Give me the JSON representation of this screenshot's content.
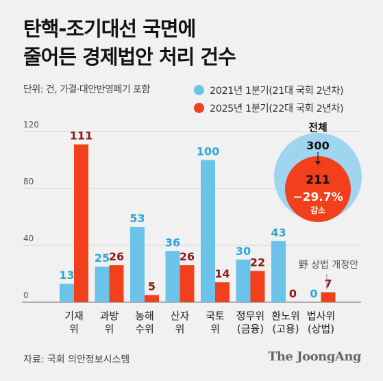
{
  "header": {
    "title_line1": "탄핵-조기대선 국면에",
    "title_line2": "줄어든 경제법안 처리 건수",
    "unit": "단위: 건, 가결·대안반영폐기 포함"
  },
  "legend": [
    {
      "label": "2021년 1분기(21대 국회 2년차)",
      "color": "#6cc3ea"
    },
    {
      "label": "2025년 1분기(22대 국회 2년차)",
      "color": "#f2401c"
    }
  ],
  "summary": {
    "label": "전체",
    "before": "300",
    "after": "211",
    "change": "−29.7%",
    "change_label": "감소"
  },
  "annotation": "野 상법 개정안",
  "footer": {
    "source": "자료: 국회 의안정보시스템",
    "brand": "The JoongAng"
  },
  "chart_data": {
    "type": "bar",
    "categories": [
      [
        "기재",
        "위"
      ],
      [
        "과방",
        "위"
      ],
      [
        "농해",
        "수위"
      ],
      [
        "산자",
        "위"
      ],
      [
        "국토",
        "위"
      ],
      [
        "정무위",
        "(금융)"
      ],
      [
        "환노위",
        "(고용)"
      ],
      [
        "법사위",
        "(상법)"
      ]
    ],
    "series": [
      {
        "name": "2021년 1분기(21대 국회 2년차)",
        "values": [
          13,
          25,
          53,
          36,
          100,
          30,
          43,
          0
        ],
        "color": "#6cc3ea",
        "label_color": "#2ba6dc"
      },
      {
        "name": "2025년 1분기(22대 국회 2년차)",
        "values": [
          111,
          26,
          5,
          26,
          14,
          22,
          0,
          7
        ],
        "color": "#f2401c",
        "label_color": "#8b1a16"
      }
    ],
    "yticks": [
      "0",
      "40",
      "80",
      "120"
    ],
    "ylim": [
      0,
      120
    ],
    "grid": true
  }
}
